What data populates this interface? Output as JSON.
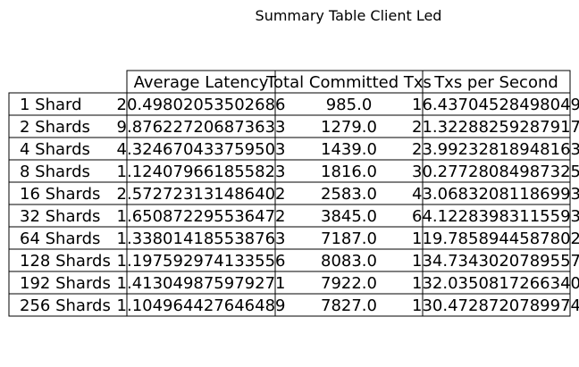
{
  "chart_data": {
    "type": "table",
    "title": "Summary Table Client Led",
    "columns": [
      "Average Latency",
      "Total Committed Txs",
      "Txs per Second"
    ],
    "rows": [
      {
        "label": "1 Shard",
        "values": [
          "20.49802053502686",
          "985.0",
          "16.43704528498049"
        ]
      },
      {
        "label": "2 Shards",
        "values": [
          "9.876227206873633",
          "1279.0",
          "21.32288259287917"
        ]
      },
      {
        "label": "4 Shards",
        "values": [
          "4.324670433759503",
          "1439.0",
          "23.99232818948163"
        ]
      },
      {
        "label": "8 Shards",
        "values": [
          "1.124079661855823",
          "1816.0",
          "30.27728084987325"
        ]
      },
      {
        "label": "16 Shards",
        "values": [
          "2.572723131486402",
          "2583.0",
          "43.06832081186993"
        ]
      },
      {
        "label": "32 Shards",
        "values": [
          "1.650872295536472",
          "3845.0",
          "64.12283983115593"
        ]
      },
      {
        "label": "64 Shards",
        "values": [
          "1.338014185538763",
          "7187.0",
          "119.7858944587802"
        ]
      },
      {
        "label": "128 Shards",
        "values": [
          "1.197592974133556",
          "8083.0",
          "134.7343020789557"
        ]
      },
      {
        "label": "192 Shards",
        "values": [
          "1.413049875979271",
          "7922.0",
          "132.0350817266340"
        ]
      },
      {
        "label": "256 Shards",
        "values": [
          "1.104964427646489",
          "7827.0",
          "130.4728720789974"
        ]
      }
    ]
  }
}
